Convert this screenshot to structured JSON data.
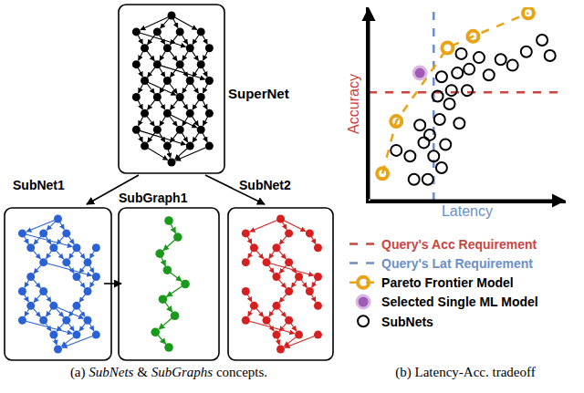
{
  "diagram": {
    "supernet": {
      "label": "SuperNet",
      "color": "#000000"
    },
    "subnets": [
      {
        "label": "SubNet1",
        "color": "#2a62d6"
      },
      {
        "label": "SubNet2",
        "color": "#d62020"
      }
    ],
    "subgraph": {
      "label": "SubGraph1",
      "color": "#1a9a1a"
    }
  },
  "captions": [
    {
      "text": "(a) SubNets & SubGraphs concepts.",
      "italic": [
        "SubNets",
        "SubGraphs"
      ]
    },
    {
      "text": "(b) Latency-Acc. tradeoff",
      "italic": []
    }
  ],
  "chart_data": {
    "type": "scatter",
    "x_label": "Latency",
    "y_label": "Accuracy",
    "xlim": [
      0,
      100
    ],
    "ylim": [
      0,
      100
    ],
    "tick_labels": false,
    "grid": false,
    "legend": "bottom",
    "requirements": [
      {
        "name": "Query's Acc Requirement",
        "axis": "y",
        "value": 56,
        "color": "#c9453f"
      },
      {
        "name": "Query's Lat Requirement",
        "axis": "x",
        "value": 33,
        "color": "#6d8fc7"
      }
    ],
    "series": [
      {
        "name": "Pareto Frontier Model",
        "color": "#e8a317",
        "marker": "circle-open",
        "line_style": "dash",
        "x": [
          7,
          14,
          40,
          53,
          81
        ],
        "values": [
          14,
          41,
          79,
          85,
          97
        ]
      },
      {
        "name": "Selected Single ML Model",
        "color": "#a05cb5",
        "marker": "circle",
        "x": [
          26
        ],
        "values": [
          66
        ]
      },
      {
        "name": "SubNets",
        "color": "#000000",
        "marker": "circle-open",
        "x": [
          14,
          26,
          31,
          21,
          28,
          33,
          23,
          30,
          37,
          36,
          41,
          42,
          37,
          45,
          47,
          51,
          56,
          50,
          61,
          67,
          73,
          80,
          88,
          92,
          39,
          46,
          35
        ],
        "values": [
          26,
          39,
          34,
          23,
          30,
          23,
          11,
          11,
          17,
          42,
          50,
          57,
          64,
          66,
          76,
          68,
          74,
          57,
          65,
          73,
          70,
          77,
          83,
          75,
          29,
          40,
          54
        ]
      }
    ]
  }
}
